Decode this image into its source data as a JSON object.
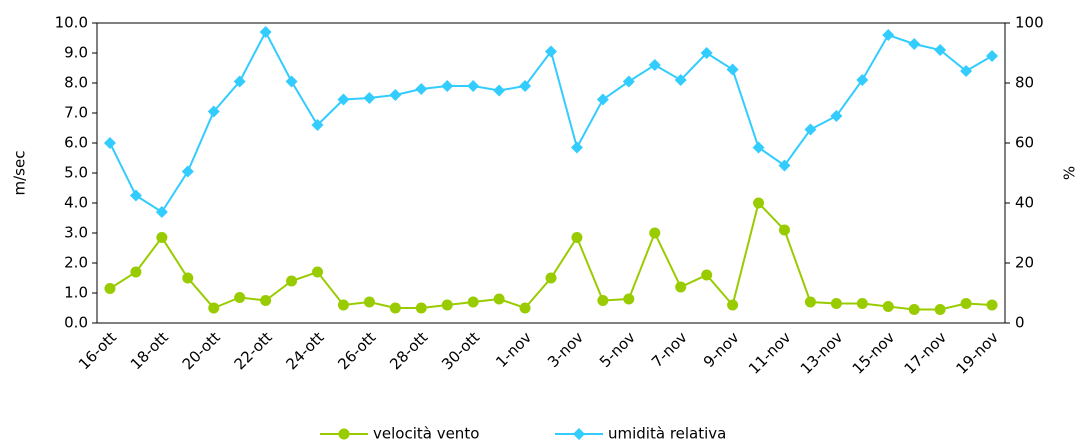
{
  "chart_data": {
    "type": "line",
    "categories": [
      "16-ott",
      null,
      "18-ott",
      null,
      "20-ott",
      null,
      "22-ott",
      null,
      "24-ott",
      null,
      "26-ott",
      null,
      "28-ott",
      null,
      "30-ott",
      null,
      "1-nov",
      null,
      "3-nov",
      null,
      "5-nov",
      null,
      "7-nov",
      null,
      "9-nov",
      null,
      "11-nov",
      null,
      "13-nov",
      null,
      "15-nov",
      null,
      "17-nov",
      null,
      "19-nov"
    ],
    "series": [
      {
        "name": "velocità vento",
        "color": "#99cc00",
        "marker": "circle",
        "values": [
          1.15,
          1.7,
          2.85,
          1.5,
          0.5,
          0.85,
          0.75,
          1.4,
          1.7,
          0.6,
          0.7,
          0.5,
          0.5,
          0.6,
          0.7,
          0.8,
          0.5,
          1.5,
          2.85,
          0.75,
          0.8,
          3.0,
          1.2,
          1.6,
          0.6,
          4.0,
          3.1,
          0.7,
          0.65,
          0.65,
          0.55,
          0.45,
          0.45,
          0.65,
          0.6
        ]
      },
      {
        "name": "umidità relativa",
        "color": "#33ccff",
        "marker": "diamond",
        "axis": "y2",
        "values": [
          60,
          42.5,
          37,
          50.5,
          70.5,
          80.5,
          97,
          80.5,
          66,
          74.5,
          75,
          76,
          78,
          79,
          79,
          77.5,
          79,
          90.5,
          58.5,
          74.5,
          80.5,
          86,
          81,
          90,
          84.5,
          58.5,
          52.5,
          64.5,
          69,
          81,
          96,
          93,
          91,
          84,
          89
        ]
      }
    ],
    "ylabel": "m/sec",
    "y2label": "%",
    "ylim": [
      0,
      10
    ],
    "yticks": [
      {
        "value": 0,
        "label": "0.0"
      },
      {
        "value": 1,
        "label": "1.0"
      },
      {
        "value": 2,
        "label": "2.0"
      },
      {
        "value": 3,
        "label": "3.0"
      },
      {
        "value": 4,
        "label": "4.0"
      },
      {
        "value": 5,
        "label": "5.0"
      },
      {
        "value": 6,
        "label": "6.0"
      },
      {
        "value": 7,
        "label": "7.0"
      },
      {
        "value": 8,
        "label": "8.0"
      },
      {
        "value": 9,
        "label": "9.0"
      },
      {
        "value": 10,
        "label": "10.0"
      }
    ],
    "y2lim": [
      0,
      100
    ],
    "y2ticks": [
      0,
      20,
      40,
      60,
      80,
      100
    ],
    "grid": false,
    "legend": "bottom"
  }
}
